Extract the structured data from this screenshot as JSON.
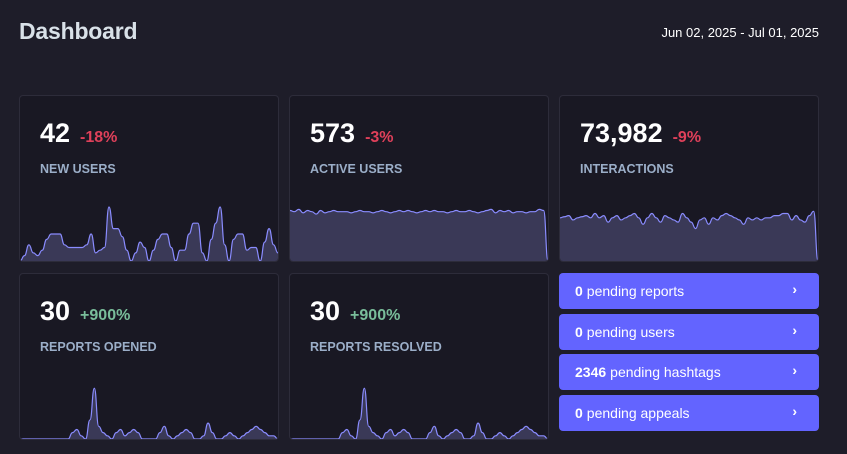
{
  "header": {
    "title": "Dashboard",
    "date_range": "Jun 02, 2025 - Jul 01, 2025"
  },
  "cards": [
    {
      "value": "42",
      "change": "-18%",
      "label": "NEW USERS",
      "series": [
        0,
        2,
        6,
        3,
        2,
        4,
        8,
        10,
        10,
        10,
        6,
        5,
        5,
        5,
        5,
        6,
        10,
        3,
        4,
        5,
        20,
        12,
        12,
        9,
        4,
        0,
        3,
        7,
        5,
        0,
        4,
        8,
        10,
        10,
        5,
        0,
        4,
        4,
        10,
        14,
        14,
        3,
        0,
        8,
        14,
        20,
        6,
        0,
        8,
        10,
        10,
        4,
        5,
        5,
        0,
        7,
        12,
        6,
        3
      ]
    },
    {
      "value": "573",
      "change": "-3%",
      "label": "ACTIVE USERS",
      "series": [
        43,
        42,
        44,
        41,
        43,
        42,
        40,
        43,
        41,
        42,
        43,
        42,
        42,
        42,
        41,
        42,
        43,
        42,
        42,
        41,
        42,
        43,
        42,
        41,
        42,
        43,
        42,
        43,
        42,
        41,
        42,
        43,
        42,
        43,
        42,
        42,
        41,
        42,
        43,
        42,
        42,
        43,
        42,
        41,
        42,
        43,
        44,
        41,
        43,
        42,
        43,
        41,
        42,
        42,
        41,
        42,
        42,
        44,
        43,
        0
      ]
    },
    {
      "value": "73,982",
      "change": "-9%",
      "label": "INTERACTIONS",
      "series": [
        40,
        41,
        42,
        38,
        40,
        41,
        42,
        40,
        44,
        40,
        42,
        36,
        40,
        42,
        38,
        40,
        42,
        44,
        40,
        34,
        40,
        44,
        40,
        36,
        42,
        40,
        38,
        36,
        44,
        40,
        36,
        30,
        38,
        40,
        34,
        40,
        38,
        42,
        44,
        42,
        40,
        38,
        34,
        40,
        38,
        40,
        38,
        40,
        40,
        42,
        42,
        44,
        44,
        38,
        42,
        38,
        36,
        42,
        46,
        0
      ]
    },
    {
      "value": "30",
      "change": "+900%",
      "label": "REPORTS OPENED",
      "series": [
        0,
        0,
        0,
        0,
        0,
        0,
        0,
        0,
        0,
        0,
        0,
        0,
        2,
        3,
        1,
        0,
        6,
        16,
        4,
        2,
        1,
        0,
        2,
        3,
        1,
        2,
        3,
        2,
        0,
        0,
        0,
        0,
        2,
        4,
        1,
        0,
        1,
        2,
        3,
        2,
        0,
        0,
        1,
        5,
        2,
        0,
        0,
        1,
        2,
        1,
        0,
        1,
        2,
        3,
        4,
        3,
        2,
        1,
        1,
        0
      ]
    },
    {
      "value": "30",
      "change": "+900%",
      "label": "REPORTS RESOLVED",
      "series": [
        0,
        0,
        0,
        0,
        0,
        0,
        0,
        0,
        0,
        0,
        0,
        0,
        2,
        3,
        1,
        0,
        6,
        16,
        4,
        2,
        1,
        0,
        2,
        3,
        1,
        2,
        3,
        2,
        0,
        0,
        0,
        0,
        2,
        4,
        1,
        0,
        1,
        2,
        3,
        2,
        0,
        0,
        1,
        5,
        2,
        0,
        0,
        1,
        2,
        1,
        0,
        1,
        2,
        3,
        4,
        3,
        2,
        1,
        1,
        0
      ]
    }
  ],
  "actions": [
    {
      "count": "0",
      "text": "pending reports",
      "chevron": "›"
    },
    {
      "count": "0",
      "text": "pending users",
      "chevron": "›"
    },
    {
      "count": "2346",
      "text": "pending hashtags",
      "chevron": "›"
    },
    {
      "count": "0",
      "text": "pending appeals",
      "chevron": "›"
    }
  ],
  "colors": {
    "background": "#1e1d29",
    "card": "#191823",
    "accent": "#6364ff",
    "spark_fill": "#3a3957",
    "spark_line": "#8a8cff",
    "negative": "#df405a",
    "positive": "#79bd9a"
  }
}
